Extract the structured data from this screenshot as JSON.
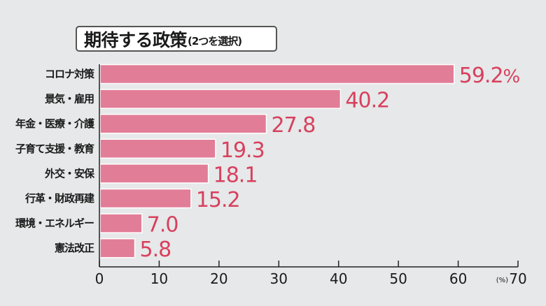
{
  "chart_data": {
    "type": "bar",
    "orientation": "horizontal",
    "title": "期待する政策",
    "subtitle": "(2つを選択)",
    "categories": [
      "コロナ対策",
      "景気・雇用",
      "年金・医療・介護",
      "子育て支援・教育",
      "外交・安保",
      "行革・財政再建",
      "環境・エネルギー",
      "憲法改正"
    ],
    "values": [
      59.2,
      40.2,
      27.8,
      19.3,
      18.1,
      15.2,
      7.0,
      5.8
    ],
    "data_labels": [
      "59.2%",
      "40.2",
      "27.8",
      "19.3",
      "18.1",
      "15.2",
      "7.0",
      "5.8"
    ],
    "xlim": [
      0,
      70
    ],
    "xticks": [
      "0",
      "10",
      "20",
      "30",
      "40",
      "50",
      "60",
      "70"
    ],
    "xunit": "(%)",
    "grid": false,
    "colors": {
      "bar": "#e27d97",
      "label": "#d8405e",
      "background": "#e6e8e9"
    }
  }
}
